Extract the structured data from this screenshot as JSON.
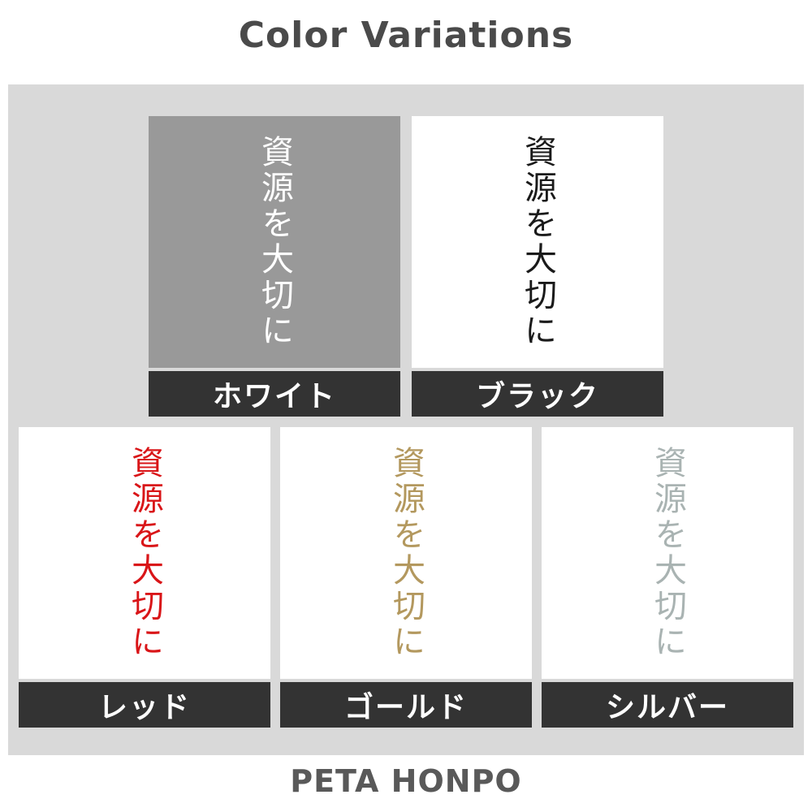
{
  "page": {
    "title": "Color Variations",
    "footer": "PETA HONPO"
  },
  "sample_text": "資源を大切に",
  "colors": {
    "board_bg": "#d9d9d9",
    "label_bar_bg": "#333333",
    "title_color": "#4a4a4a",
    "footer_color": "#595959"
  },
  "variations": [
    {
      "label": "ホワイト",
      "name": "white",
      "text_color": "#ffffff",
      "swatch_bg": "#999999"
    },
    {
      "label": "ブラック",
      "name": "black",
      "text_color": "#1a1a1a",
      "swatch_bg": "#ffffff"
    },
    {
      "label": "レッド",
      "name": "red",
      "text_color": "#d91518",
      "swatch_bg": "#ffffff"
    },
    {
      "label": "ゴールド",
      "name": "gold",
      "text_color": "#b3985e",
      "swatch_bg": "#ffffff"
    },
    {
      "label": "シルバー",
      "name": "silver",
      "text_color": "#a9b3b2",
      "swatch_bg": "#ffffff"
    }
  ]
}
